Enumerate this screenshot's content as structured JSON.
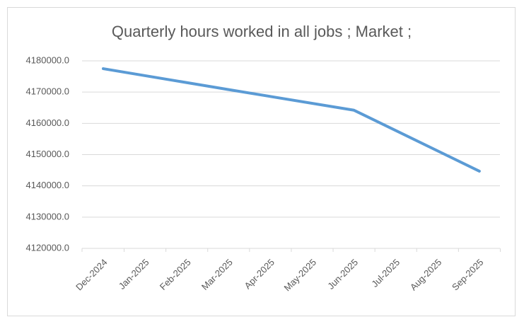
{
  "chart_data": {
    "type": "line",
    "title": "Quarterly hours worked in all jobs ;  Market ;",
    "xticks": [
      "Dec-2024",
      "Jan-2025",
      "Feb-2025",
      "Mar-2025",
      "Apr-2025",
      "May-2025",
      "Jun-2025",
      "Jul-2025",
      "Aug-2025",
      "Sep-2025"
    ],
    "x": [
      "Dec-2024",
      "Mar-2025",
      "Jun-2025",
      "Sep-2025"
    ],
    "values": [
      4177500,
      4170800,
      4164200,
      4144700
    ],
    "color": "#5b9bd5",
    "ylim": [
      4120000,
      4180000
    ],
    "yticks": [
      {
        "value": 4120000,
        "label": "4120000.0"
      },
      {
        "value": 4130000,
        "label": "4130000.0"
      },
      {
        "value": 4140000,
        "label": "4140000.0"
      },
      {
        "value": 4150000,
        "label": "4150000.0"
      },
      {
        "value": 4160000,
        "label": "4160000.0"
      },
      {
        "value": 4170000,
        "label": "4170000.0"
      },
      {
        "value": 4180000,
        "label": "4180000.0"
      }
    ],
    "grid": true
  }
}
